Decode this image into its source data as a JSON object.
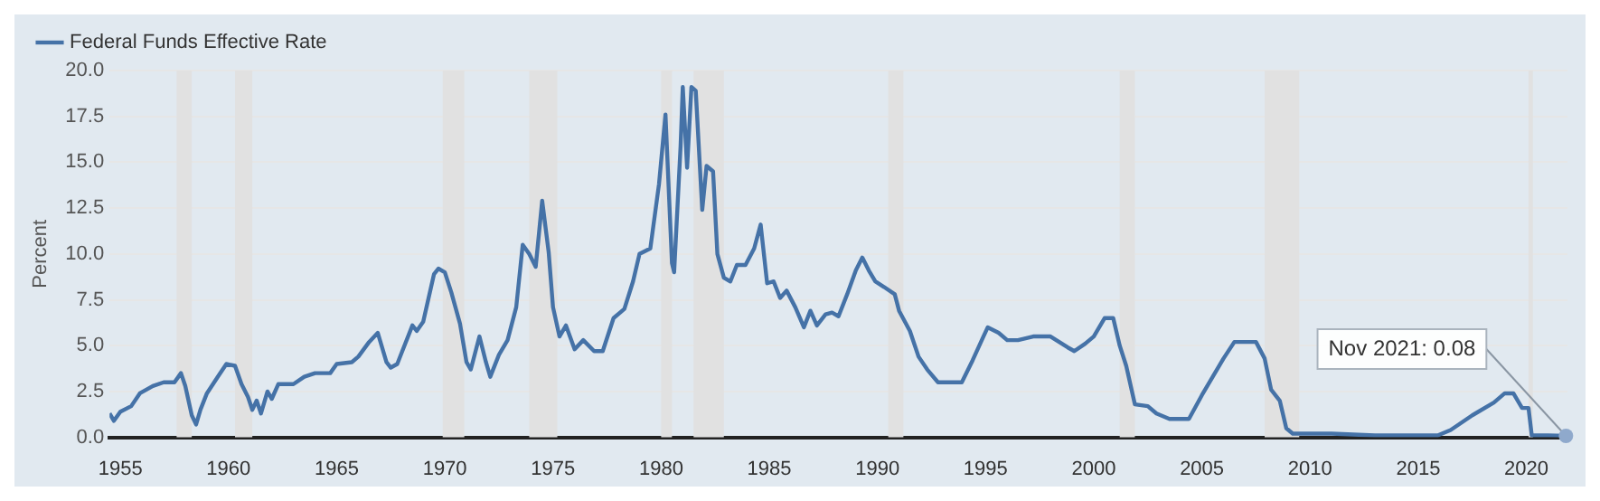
{
  "chart_data": {
    "type": "line",
    "ylabel": "Percent",
    "legend": "top left",
    "grid": "y",
    "marker": "none",
    "line_style": "solid",
    "xlim": [
      1954.5,
      2021.9
    ],
    "xticks": [
      1955,
      1960,
      1965,
      1970,
      1975,
      1980,
      1985,
      1990,
      1995,
      2000,
      2005,
      2010,
      2015,
      2020
    ],
    "ylim": [
      0,
      20
    ],
    "yticks": [
      {
        "value": 0,
        "label": "0.0"
      },
      {
        "value": 2.5,
        "label": "2.5"
      },
      {
        "value": 5,
        "label": "5.0"
      },
      {
        "value": 7.5,
        "label": "7.5"
      },
      {
        "value": 10,
        "label": "10.0"
      },
      {
        "value": 12.5,
        "label": "12.5"
      },
      {
        "value": 15,
        "label": "15.0"
      },
      {
        "value": 17.5,
        "label": "17.5"
      },
      {
        "value": 20,
        "label": "20.0"
      }
    ],
    "bands": [
      {
        "axis": "x",
        "from": 1957.6,
        "to": 1958.3,
        "color": "#e1e1e1"
      },
      {
        "axis": "x",
        "from": 1960.3,
        "to": 1961.1,
        "color": "#e1e1e1"
      },
      {
        "axis": "x",
        "from": 1969.9,
        "to": 1970.9,
        "color": "#e1e1e1"
      },
      {
        "axis": "x",
        "from": 1973.9,
        "to": 1975.2,
        "color": "#e1e1e1"
      },
      {
        "axis": "x",
        "from": 1980.0,
        "to": 1980.5,
        "color": "#e1e1e1"
      },
      {
        "axis": "x",
        "from": 1981.5,
        "to": 1982.9,
        "color": "#e1e1e1"
      },
      {
        "axis": "x",
        "from": 1990.5,
        "to": 1991.2,
        "color": "#e1e1e1"
      },
      {
        "axis": "x",
        "from": 2001.2,
        "to": 2001.9,
        "color": "#e1e1e1"
      },
      {
        "axis": "x",
        "from": 2007.9,
        "to": 2009.5,
        "color": "#e1e1e1"
      },
      {
        "axis": "x",
        "from": 2020.1,
        "to": 2020.3,
        "color": "#e1e1e1"
      }
    ],
    "annotations": [
      {
        "text": "Nov 2021: 0.08",
        "x": 2021.83,
        "y": 0.08
      }
    ],
    "series": [
      {
        "name": "Federal Funds Effective Rate",
        "color": "#4572a7",
        "x": [
          1954.5,
          1954.7,
          1955.0,
          1955.5,
          1955.9,
          1956.5,
          1957.0,
          1957.5,
          1957.8,
          1958.0,
          1958.3,
          1958.5,
          1958.7,
          1959.0,
          1959.5,
          1959.9,
          1960.3,
          1960.6,
          1960.9,
          1961.1,
          1961.3,
          1961.5,
          1961.8,
          1962.0,
          1962.3,
          1962.7,
          1963.0,
          1963.5,
          1964.0,
          1964.7,
          1965.0,
          1965.7,
          1966.0,
          1966.5,
          1966.9,
          1967.3,
          1967.5,
          1967.8,
          1968.0,
          1968.5,
          1968.7,
          1969.0,
          1969.5,
          1969.7,
          1970.0,
          1970.3,
          1970.7,
          1971.0,
          1971.2,
          1971.6,
          1971.9,
          1972.1,
          1972.5,
          1972.9,
          1973.3,
          1973.6,
          1973.9,
          1974.2,
          1974.5,
          1974.8,
          1975.0,
          1975.3,
          1975.6,
          1976.0,
          1976.4,
          1976.9,
          1977.3,
          1977.8,
          1978.3,
          1978.7,
          1979.0,
          1979.5,
          1979.9,
          1980.2,
          1980.5,
          1980.6,
          1980.9,
          1981.0,
          1981.2,
          1981.4,
          1981.6,
          1981.9,
          1982.1,
          1982.4,
          1982.6,
          1982.9,
          1983.2,
          1983.5,
          1983.9,
          1984.3,
          1984.6,
          1984.9,
          1985.2,
          1985.5,
          1985.8,
          1986.2,
          1986.6,
          1986.9,
          1987.2,
          1987.6,
          1987.9,
          1988.2,
          1988.6,
          1989.0,
          1989.3,
          1989.6,
          1989.9,
          1990.3,
          1990.8,
          1991.0,
          1991.5,
          1991.9,
          1992.3,
          1992.8,
          1993.5,
          1993.9,
          1994.4,
          1994.9,
          1995.1,
          1995.6,
          1996.0,
          1996.5,
          1997.2,
          1998.0,
          1998.8,
          1999.1,
          1999.6,
          2000.0,
          2000.5,
          2000.9,
          2001.2,
          2001.5,
          2001.9,
          2002.5,
          2002.9,
          2003.5,
          2004.4,
          2005.0,
          2006.0,
          2006.5,
          2007.5,
          2007.9,
          2008.2,
          2008.6,
          2008.9,
          2009.2,
          2011.0,
          2013.0,
          2015.9,
          2016.5,
          2017.5,
          2018.5,
          2019.0,
          2019.4,
          2019.8,
          2020.1,
          2020.25,
          2021.0,
          2021.83
        ],
        "values": [
          1.3,
          0.9,
          1.4,
          1.7,
          2.4,
          2.8,
          3.0,
          3.0,
          3.5,
          2.8,
          1.2,
          0.7,
          1.5,
          2.4,
          3.3,
          4.0,
          3.9,
          2.9,
          2.2,
          1.5,
          2.0,
          1.3,
          2.5,
          2.1,
          2.9,
          2.9,
          2.9,
          3.3,
          3.5,
          3.5,
          4.0,
          4.1,
          4.4,
          5.2,
          5.7,
          4.1,
          3.8,
          4.0,
          4.6,
          6.1,
          5.8,
          6.3,
          8.9,
          9.2,
          9.0,
          7.9,
          6.2,
          4.1,
          3.7,
          5.5,
          4.1,
          3.3,
          4.5,
          5.3,
          7.1,
          10.5,
          10.0,
          9.3,
          12.9,
          10.1,
          7.1,
          5.5,
          6.1,
          4.8,
          5.3,
          4.7,
          4.7,
          6.5,
          7.0,
          8.5,
          10.0,
          10.3,
          13.8,
          17.6,
          9.5,
          9.0,
          15.9,
          19.1,
          14.7,
          19.1,
          18.9,
          12.4,
          14.8,
          14.5,
          10.0,
          8.7,
          8.5,
          9.4,
          9.4,
          10.3,
          11.6,
          8.4,
          8.5,
          7.6,
          8.0,
          7.1,
          6.0,
          6.9,
          6.1,
          6.7,
          6.8,
          6.6,
          7.8,
          9.1,
          9.8,
          9.1,
          8.5,
          8.2,
          7.8,
          6.9,
          5.8,
          4.4,
          3.7,
          3.0,
          3.0,
          3.0,
          4.2,
          5.5,
          6.0,
          5.7,
          5.3,
          5.3,
          5.5,
          5.5,
          4.9,
          4.7,
          5.1,
          5.5,
          6.5,
          6.5,
          5.0,
          3.9,
          1.8,
          1.7,
          1.3,
          1.0,
          1.0,
          2.3,
          4.3,
          5.2,
          5.2,
          4.3,
          2.6,
          2.0,
          0.5,
          0.2,
          0.2,
          0.1,
          0.1,
          0.4,
          1.2,
          1.9,
          2.4,
          2.4,
          1.6,
          1.6,
          0.1,
          0.1,
          0.08
        ]
      }
    ]
  }
}
